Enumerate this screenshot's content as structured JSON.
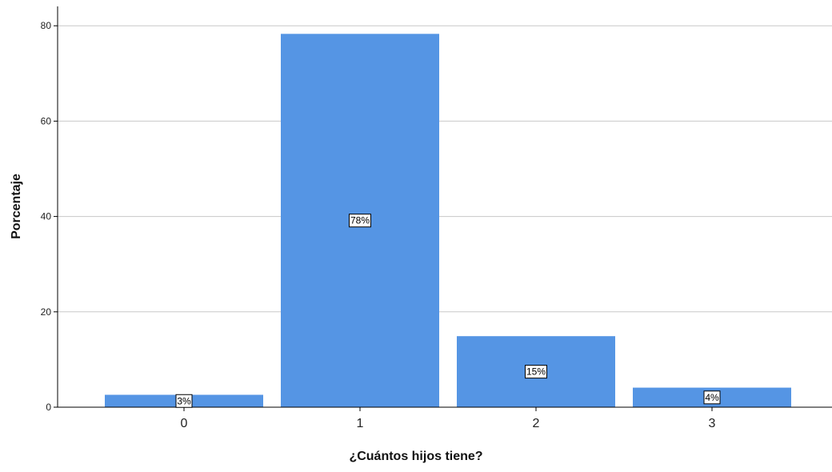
{
  "chart_data": {
    "type": "bar",
    "categories": [
      "0",
      "1",
      "2",
      "3"
    ],
    "values": [
      2.6,
      78.3,
      14.9,
      4.1
    ],
    "data_labels": [
      "3%",
      "78%",
      "15%",
      "4%"
    ],
    "title": "",
    "xlabel": "¿Cuántos hijos tiene?",
    "ylabel": "Porcentaje",
    "ylim": [
      0,
      85
    ],
    "yticks": [
      "0",
      "20",
      "40",
      "60",
      "80"
    ],
    "ytick_values": [
      0,
      20,
      40,
      60,
      80
    ],
    "grid": true,
    "legend": "none",
    "bar_color": "#5595E4",
    "grid_color": "#C8C8C8",
    "axis_color": "#000000"
  }
}
